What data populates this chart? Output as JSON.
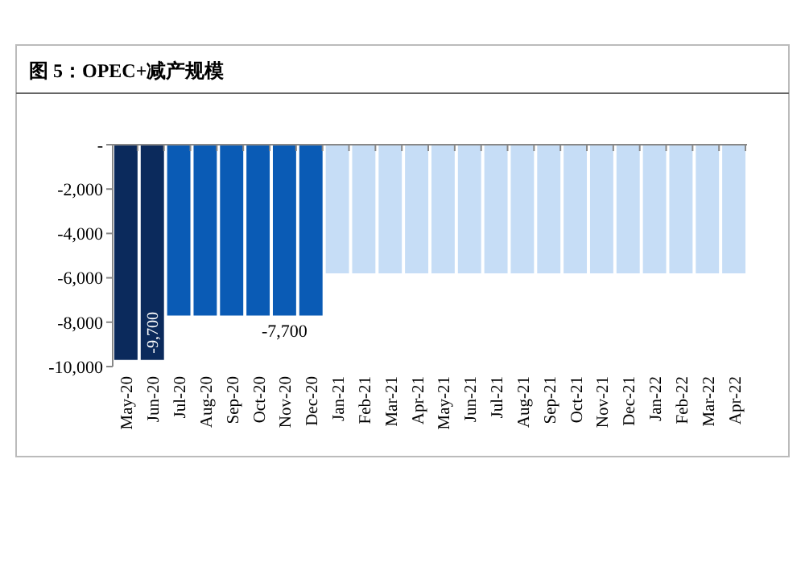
{
  "chart_data": {
    "type": "bar",
    "title": "图 5：OPEC+减产规模",
    "categories": [
      "May-20",
      "Jun-20",
      "Jul-20",
      "Aug-20",
      "Sep-20",
      "Oct-20",
      "Nov-20",
      "Dec-20",
      "Jan-21",
      "Feb-21",
      "Mar-21",
      "Apr-21",
      "May-21",
      "Jun-21",
      "Jul-21",
      "Aug-21",
      "Sep-21",
      "Oct-21",
      "Nov-21",
      "Dec-21",
      "Jan-22",
      "Feb-22",
      "Mar-22",
      "Apr-22"
    ],
    "values": [
      -9700,
      -9700,
      -7700,
      -7700,
      -7700,
      -7700,
      -7700,
      -7700,
      -5800,
      -5800,
      -5800,
      -5800,
      -5800,
      -5800,
      -5800,
      -5800,
      -5800,
      -5800,
      -5800,
      -5800,
      -5800,
      -5800,
      -5800,
      -5800
    ],
    "colors": [
      "#0b2a5c",
      "#0b2a5c",
      "#0a5bb5",
      "#0a5bb5",
      "#0a5bb5",
      "#0a5bb5",
      "#0a5bb5",
      "#0a5bb5",
      "#c6ddf6",
      "#c6ddf6",
      "#c6ddf6",
      "#c6ddf6",
      "#c6ddf6",
      "#c6ddf6",
      "#c6ddf6",
      "#c6ddf6",
      "#c6ddf6",
      "#c6ddf6",
      "#c6ddf6",
      "#c6ddf6",
      "#c6ddf6",
      "#c6ddf6",
      "#c6ddf6",
      "#c6ddf6"
    ],
    "value_labels": [
      null,
      "-9,700",
      null,
      null,
      null,
      null,
      "-7,700",
      null,
      null,
      null,
      null,
      null,
      null,
      null,
      null,
      null,
      null,
      null,
      null,
      null,
      null,
      null,
      null,
      null
    ],
    "ylim": [
      -10000,
      0
    ],
    "yticks": [
      {
        "value": 0,
        "label": "-"
      },
      {
        "value": -2000,
        "label": "-2,000"
      },
      {
        "value": -4000,
        "label": "-4,000"
      },
      {
        "value": -6000,
        "label": "-6,000"
      },
      {
        "value": -8000,
        "label": "-8,000"
      },
      {
        "value": -10000,
        "label": "-10,000"
      }
    ]
  }
}
